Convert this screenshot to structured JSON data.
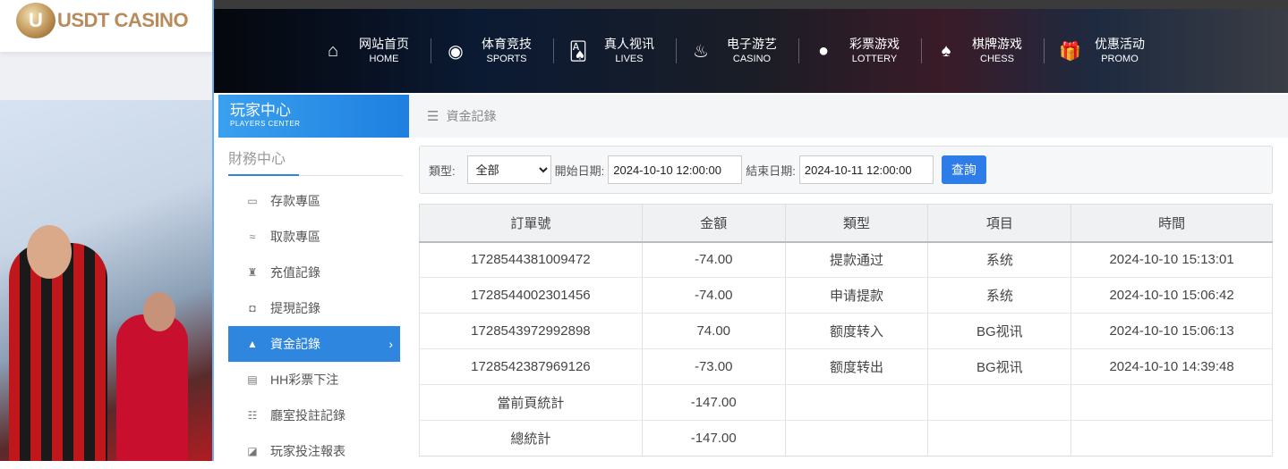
{
  "logo": {
    "mark": "U",
    "text": "USDT CASINO"
  },
  "nav": [
    {
      "icon": "home-icon",
      "glyph": "⌂",
      "cn": "网站首页",
      "en": "HOME"
    },
    {
      "icon": "basketball-icon",
      "glyph": "◉",
      "cn": "体育竞技",
      "en": "SPORTS"
    },
    {
      "icon": "cards-icon",
      "glyph": "🂡",
      "cn": "真人视讯",
      "en": "LIVES"
    },
    {
      "icon": "slot-icon",
      "glyph": "♨",
      "cn": "电子游艺",
      "en": "CASINO"
    },
    {
      "icon": "lottery-balls-icon",
      "glyph": "●",
      "cn": "彩票游戏",
      "en": "LOTTERY"
    },
    {
      "icon": "spade-icon",
      "glyph": "♠",
      "cn": "棋牌游戏",
      "en": "CHESS"
    },
    {
      "icon": "gift-icon",
      "glyph": "🎁",
      "cn": "优惠活动",
      "en": "PROMO"
    }
  ],
  "sidebar": {
    "header_cn": "玩家中心",
    "header_en": "PLAYERS CENTER",
    "section": "財務中心",
    "items": [
      {
        "label": "存款專區",
        "glyph": "▭"
      },
      {
        "label": "取款專區",
        "glyph": "≈"
      },
      {
        "label": "充值記錄",
        "glyph": "♜"
      },
      {
        "label": "提現記錄",
        "glyph": "◘"
      },
      {
        "label": "資金記錄",
        "glyph": "▲",
        "active": true
      },
      {
        "label": "HH彩票下注",
        "glyph": "▤"
      },
      {
        "label": "廳室投註記錄",
        "glyph": "☷"
      },
      {
        "label": "玩家投注報表",
        "glyph": "◪"
      }
    ]
  },
  "breadcrumb": "資金記錄",
  "filter": {
    "type_label": "類型:",
    "type_value": "全部",
    "start_label": "開始日期:",
    "start_value": "2024-10-10 12:00:00",
    "end_label": "結束日期:",
    "end_value": "2024-10-11 12:00:00",
    "query": "查詢"
  },
  "table": {
    "headers": [
      "訂單號",
      "金額",
      "類型",
      "項目",
      "時間"
    ],
    "rows": [
      [
        "1728544381009472",
        "-74.00",
        "提款通过",
        "系统",
        "2024-10-10 15:13:01"
      ],
      [
        "1728544002301456",
        "-74.00",
        "申请提款",
        "系统",
        "2024-10-10 15:06:42"
      ],
      [
        "1728543972992898",
        "74.00",
        "额度转入",
        "BG视讯",
        "2024-10-10 15:06:13"
      ],
      [
        "1728542387969126",
        "-73.00",
        "额度转出",
        "BG视讯",
        "2024-10-10 14:39:48"
      ],
      [
        "當前頁統計",
        "-147.00",
        "",
        "",
        ""
      ],
      [
        "總統計",
        "-147.00",
        "",
        "",
        ""
      ]
    ]
  }
}
